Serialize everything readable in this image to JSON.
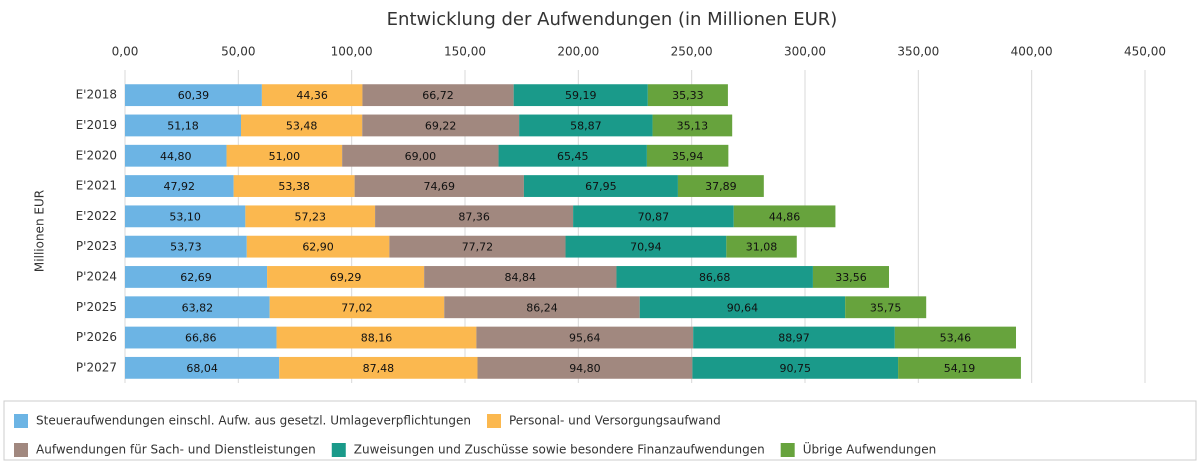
{
  "chart_data": {
    "type": "bar",
    "orientation": "horizontal",
    "stacked": true,
    "title": "Entwicklung der Aufwendungen (in Millionen EUR)",
    "y_label": "Millionen EUR",
    "categories": [
      "E'2018",
      "E'2019",
      "E'2020",
      "E'2021",
      "E'2022",
      "P'2023",
      "P'2024",
      "P'2025",
      "P'2026",
      "P'2027"
    ],
    "series": [
      {
        "name": "Steueraufwendungen einschl. Aufw. aus gesetzl. Umlageverpflichtungen",
        "color": "#6cb4e4",
        "values": [
          60.39,
          51.18,
          44.8,
          47.92,
          53.1,
          53.73,
          62.69,
          63.82,
          66.86,
          68.04
        ],
        "value_labels": [
          "60,39",
          "51,18",
          "44,80",
          "47,92",
          "53,10",
          "53,73",
          "62,69",
          "63,82",
          "66,86",
          "68,04"
        ]
      },
      {
        "name": "Personal- und Versorgungsaufwand",
        "color": "#fbb84f",
        "values": [
          44.36,
          53.48,
          51.0,
          53.38,
          57.23,
          62.9,
          69.29,
          77.02,
          88.16,
          87.48
        ],
        "value_labels": [
          "44,36",
          "53,48",
          "51,00",
          "53,38",
          "57,23",
          "62,90",
          "69,29",
          "77,02",
          "88,16",
          "87,48"
        ]
      },
      {
        "name": "Aufwendungen für Sach- und Dienstleistungen",
        "color": "#a1887f",
        "values": [
          66.72,
          69.22,
          69.0,
          74.69,
          87.36,
          77.72,
          84.84,
          86.24,
          95.64,
          94.8
        ],
        "value_labels": [
          "66,72",
          "69,22",
          "69,00",
          "74,69",
          "87,36",
          "77,72",
          "84,84",
          "86,24",
          "95,64",
          "94,80"
        ]
      },
      {
        "name": "Zuweisungen und Zuschüsse sowie besondere Finanzaufwendungen",
        "color": "#1a9a8a",
        "values": [
          59.19,
          58.87,
          65.45,
          67.95,
          70.87,
          70.94,
          86.68,
          90.64,
          88.97,
          90.75
        ],
        "value_labels": [
          "59,19",
          "58,87",
          "65,45",
          "67,95",
          "70,87",
          "70,94",
          "86,68",
          "90,64",
          "88,97",
          "90,75"
        ]
      },
      {
        "name": "Übrige Aufwendungen",
        "color": "#67a33d",
        "values": [
          35.33,
          35.13,
          35.94,
          37.89,
          44.86,
          31.08,
          33.56,
          35.75,
          53.46,
          54.19
        ],
        "value_labels": [
          "35,33",
          "35,13",
          "35,94",
          "37,89",
          "44,86",
          "31,08",
          "33,56",
          "35,75",
          "53,46",
          "54,19"
        ]
      }
    ],
    "xlim": [
      0,
      450
    ],
    "xticks": [
      {
        "value": 0,
        "label": "0,00"
      },
      {
        "value": 50,
        "label": "50,00"
      },
      {
        "value": 100,
        "label": "100,00"
      },
      {
        "value": 150,
        "label": "150,00"
      },
      {
        "value": 200,
        "label": "200,00"
      },
      {
        "value": 250,
        "label": "250,00"
      },
      {
        "value": 300,
        "label": "300,00"
      },
      {
        "value": 350,
        "label": "350,00"
      },
      {
        "value": 400,
        "label": "400,00"
      },
      {
        "value": 450,
        "label": "450,00"
      }
    ],
    "grid": true,
    "legend": "bottom"
  }
}
